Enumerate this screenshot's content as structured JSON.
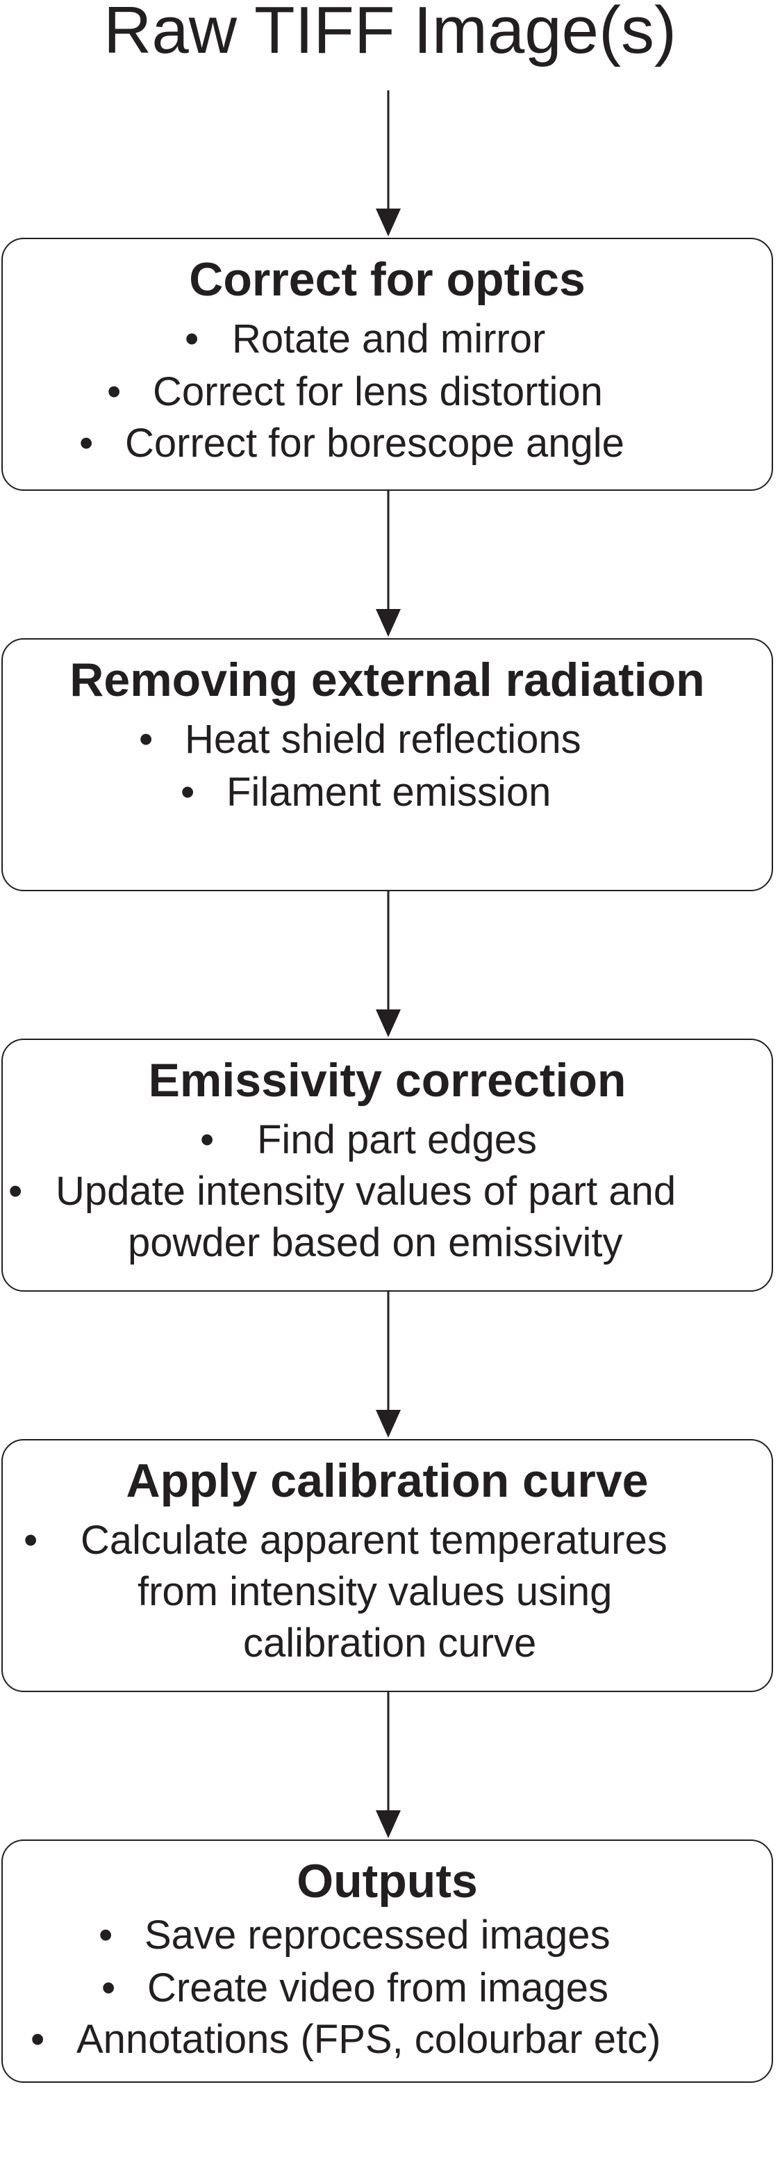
{
  "title": "Raw TIFF Image(s)",
  "steps": [
    {
      "title": "Correct for optics",
      "items": [
        "Rotate and mirror",
        "Correct for lens distortion",
        "Correct for borescope angle"
      ]
    },
    {
      "title": "Removing external radiation",
      "items": [
        "Heat shield reflections",
        "Filament emission"
      ]
    },
    {
      "title": "Emissivity correction",
      "items": [
        "Find part edges",
        "Update intensity values of part and",
        "powder based on emissivity"
      ]
    },
    {
      "title": "Apply calibration curve",
      "items": [
        "Calculate apparent temperatures",
        "from intensity values using",
        "calibration curve"
      ]
    },
    {
      "title": "Outputs",
      "items": [
        "Save reprocessed images",
        "Create video from images",
        "Annotations (FPS, colourbar etc)"
      ]
    }
  ],
  "bullet_char": "•"
}
